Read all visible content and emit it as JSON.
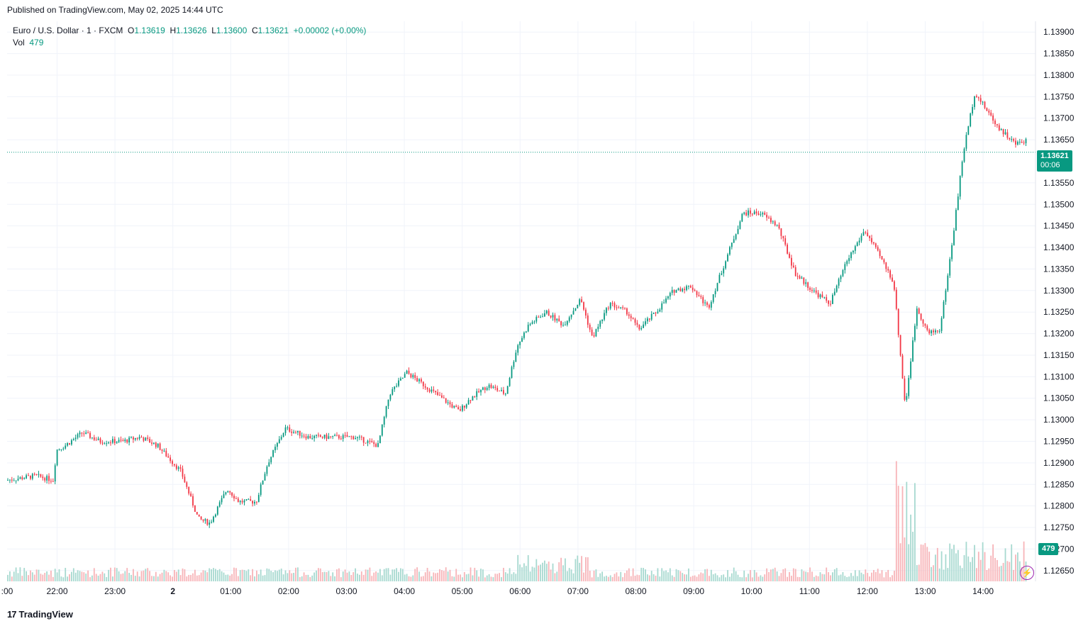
{
  "header": {
    "published": "Published on TradingView.com, May 02, 2025 14:44 UTC"
  },
  "legend": {
    "symbol": "Euro / U.S. Dollar · 1 · FXCM",
    "o_label": "O",
    "o_value": "1.13619",
    "h_label": "H",
    "h_value": "1.13626",
    "l_label": "L",
    "l_value": "1.13600",
    "c_label": "C",
    "c_value": "1.13621",
    "change": "+0.00002 (+0.00%)",
    "vol_label": "Vol",
    "vol_value": "479"
  },
  "price_tag": {
    "price": "1.13621",
    "countdown": "00:06"
  },
  "vol_tag": "479",
  "footer": {
    "logo_glyph": "17",
    "brand": "TradingView"
  },
  "colors": {
    "up": "#089981",
    "down": "#f23645",
    "up_vol": "#a7d9d0",
    "down_vol": "#f7b4b8",
    "grid": "#f0f3fa",
    "current": "#089981"
  },
  "icons": {
    "bolt": "lightning-icon",
    "logo": "tradingview-logo-icon"
  },
  "chart_data": {
    "type": "candlestick",
    "symbol": "EURUSD",
    "ylim": [
      1.12625,
      1.13925
    ],
    "y_ticks": [
      "1.12650",
      "1.12700",
      "1.12750",
      "1.12800",
      "1.12850",
      "1.12900",
      "1.12950",
      "1.13000",
      "1.13050",
      "1.13100",
      "1.13150",
      "1.13200",
      "1.13250",
      "1.13300",
      "1.13350",
      "1.13400",
      "1.13450",
      "1.13500",
      "1.13550",
      "1.13650",
      "1.13700",
      "1.13750",
      "1.13800",
      "1.13850",
      "1.13900"
    ],
    "x_ticks": [
      ":00",
      "22:00",
      "23:00",
      "2",
      "01:00",
      "02:00",
      "03:00",
      "04:00",
      "05:00",
      "06:00",
      "07:00",
      "08:00",
      "09:00",
      "10:00",
      "11:00",
      "12:00",
      "13:00",
      "14:00"
    ],
    "current_price": 1.13621,
    "close_path": [
      [
        0,
        1.1286
      ],
      [
        0.5,
        1.1287
      ],
      [
        0.8,
        1.1286
      ],
      [
        0.85,
        1.1293
      ],
      [
        1.0,
        1.1294
      ],
      [
        1.3,
        1.1297
      ],
      [
        1.6,
        1.1295
      ],
      [
        2.0,
        1.1295
      ],
      [
        2.3,
        1.1296
      ],
      [
        2.6,
        1.1294
      ],
      [
        3.0,
        1.1288
      ],
      [
        3.3,
        1.1277
      ],
      [
        3.5,
        1.1276
      ],
      [
        3.8,
        1.1284
      ],
      [
        4.0,
        1.1281
      ],
      [
        4.3,
        1.1281
      ],
      [
        4.5,
        1.129
      ],
      [
        4.8,
        1.1298
      ],
      [
        5.2,
        1.1296
      ],
      [
        5.6,
        1.1296
      ],
      [
        6.0,
        1.1296
      ],
      [
        6.4,
        1.1294
      ],
      [
        6.6,
        1.1306
      ],
      [
        6.9,
        1.1311
      ],
      [
        7.2,
        1.1308
      ],
      [
        7.4,
        1.1306
      ],
      [
        7.6,
        1.1304
      ],
      [
        7.8,
        1.1302
      ],
      [
        8.0,
        1.1305
      ],
      [
        8.3,
        1.1308
      ],
      [
        8.6,
        1.1306
      ],
      [
        8.8,
        1.1317
      ],
      [
        9.0,
        1.1322
      ],
      [
        9.3,
        1.1325
      ],
      [
        9.6,
        1.1322
      ],
      [
        9.9,
        1.1328
      ],
      [
        10.1,
        1.1319
      ],
      [
        10.4,
        1.1327
      ],
      [
        10.7,
        1.1325
      ],
      [
        10.9,
        1.1321
      ],
      [
        11.2,
        1.1325
      ],
      [
        11.5,
        1.133
      ],
      [
        11.8,
        1.1331
      ],
      [
        12.1,
        1.1326
      ],
      [
        12.4,
        1.1337
      ],
      [
        12.7,
        1.1348
      ],
      [
        13.0,
        1.1348
      ],
      [
        13.3,
        1.1345
      ],
      [
        13.6,
        1.1334
      ],
      [
        13.9,
        1.133
      ],
      [
        14.2,
        1.1327
      ],
      [
        14.5,
        1.1337
      ],
      [
        14.8,
        1.1344
      ],
      [
        15.1,
        1.1337
      ],
      [
        15.3,
        1.1332
      ],
      [
        15.5,
        1.1303
      ],
      [
        15.7,
        1.1326
      ],
      [
        15.9,
        1.132
      ],
      [
        16.1,
        1.1321
      ],
      [
        16.3,
        1.134
      ],
      [
        16.5,
        1.1362
      ],
      [
        16.7,
        1.1376
      ],
      [
        16.9,
        1.1372
      ],
      [
        17.1,
        1.1368
      ],
      [
        17.4,
        1.1364
      ],
      [
        17.6,
        1.1365
      ]
    ]
  }
}
